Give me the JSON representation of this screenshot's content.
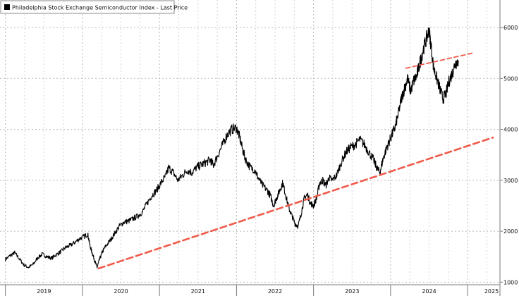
{
  "chart_data": {
    "type": "line",
    "title": "",
    "xlabel": "",
    "ylabel": "",
    "x_ticks": [
      "2019",
      "2020",
      "2021",
      "2022",
      "2023",
      "2024",
      "2025"
    ],
    "y_ticks": [
      1000,
      2000,
      3000,
      4000,
      5000,
      6000
    ],
    "xlim": [
      2018.93,
      2025.42
    ],
    "ylim": [
      950,
      6540
    ],
    "legend": {
      "position": "top-left",
      "label": "Philadelphia Stock Exchange Semiconductor Index - Last Price"
    },
    "series": [
      {
        "name": "Philadelphia Stock Exchange Semiconductor Index - Last Price",
        "style": "solid",
        "color": "#000000",
        "points": [
          [
            2019.0,
            1450
          ],
          [
            2019.06,
            1520
          ],
          [
            2019.12,
            1580
          ],
          [
            2019.18,
            1460
          ],
          [
            2019.24,
            1340
          ],
          [
            2019.3,
            1290
          ],
          [
            2019.36,
            1350
          ],
          [
            2019.42,
            1480
          ],
          [
            2019.48,
            1550
          ],
          [
            2019.54,
            1500
          ],
          [
            2019.6,
            1470
          ],
          [
            2019.66,
            1540
          ],
          [
            2019.72,
            1600
          ],
          [
            2019.78,
            1680
          ],
          [
            2019.84,
            1720
          ],
          [
            2019.9,
            1780
          ],
          [
            2019.96,
            1850
          ],
          [
            2020.02,
            1900
          ],
          [
            2020.07,
            1940
          ],
          [
            2020.1,
            1700
          ],
          [
            2020.13,
            1560
          ],
          [
            2020.16,
            1420
          ],
          [
            2020.19,
            1290
          ],
          [
            2020.22,
            1440
          ],
          [
            2020.26,
            1600
          ],
          [
            2020.3,
            1700
          ],
          [
            2020.36,
            1820
          ],
          [
            2020.42,
            1960
          ],
          [
            2020.48,
            2100
          ],
          [
            2020.54,
            2180
          ],
          [
            2020.6,
            2200
          ],
          [
            2020.66,
            2250
          ],
          [
            2020.72,
            2300
          ],
          [
            2020.78,
            2380
          ],
          [
            2020.84,
            2550
          ],
          [
            2020.9,
            2700
          ],
          [
            2020.96,
            2800
          ],
          [
            2021.02,
            2950
          ],
          [
            2021.08,
            3080
          ],
          [
            2021.12,
            3250
          ],
          [
            2021.18,
            3150
          ],
          [
            2021.24,
            3000
          ],
          [
            2021.3,
            3100
          ],
          [
            2021.36,
            3200
          ],
          [
            2021.42,
            3150
          ],
          [
            2021.48,
            3250
          ],
          [
            2021.54,
            3300
          ],
          [
            2021.6,
            3350
          ],
          [
            2021.66,
            3400
          ],
          [
            2021.7,
            3300
          ],
          [
            2021.76,
            3500
          ],
          [
            2021.82,
            3700
          ],
          [
            2021.88,
            3900
          ],
          [
            2021.94,
            4000
          ],
          [
            2022.0,
            4030
          ],
          [
            2022.04,
            3850
          ],
          [
            2022.08,
            3600
          ],
          [
            2022.12,
            3400
          ],
          [
            2022.18,
            3250
          ],
          [
            2022.24,
            3200
          ],
          [
            2022.28,
            3050
          ],
          [
            2022.34,
            2900
          ],
          [
            2022.4,
            2800
          ],
          [
            2022.44,
            2700
          ],
          [
            2022.48,
            2500
          ],
          [
            2022.52,
            2650
          ],
          [
            2022.56,
            2800
          ],
          [
            2022.6,
            2950
          ],
          [
            2022.64,
            2700
          ],
          [
            2022.68,
            2450
          ],
          [
            2022.72,
            2300
          ],
          [
            2022.76,
            2150
          ],
          [
            2022.8,
            2100
          ],
          [
            2022.84,
            2350
          ],
          [
            2022.88,
            2650
          ],
          [
            2022.92,
            2720
          ],
          [
            2022.96,
            2550
          ],
          [
            2023.0,
            2500
          ],
          [
            2023.04,
            2650
          ],
          [
            2023.08,
            2950
          ],
          [
            2023.12,
            3000
          ],
          [
            2023.16,
            2900
          ],
          [
            2023.2,
            3050
          ],
          [
            2023.24,
            3000
          ],
          [
            2023.3,
            3100
          ],
          [
            2023.36,
            3350
          ],
          [
            2023.42,
            3550
          ],
          [
            2023.48,
            3650
          ],
          [
            2023.54,
            3700
          ],
          [
            2023.6,
            3800
          ],
          [
            2023.66,
            3700
          ],
          [
            2023.72,
            3550
          ],
          [
            2023.78,
            3400
          ],
          [
            2023.82,
            3250
          ],
          [
            2023.86,
            3150
          ],
          [
            2023.9,
            3400
          ],
          [
            2023.94,
            3600
          ],
          [
            2023.98,
            3750
          ],
          [
            2024.02,
            3900
          ],
          [
            2024.06,
            4050
          ],
          [
            2024.1,
            4300
          ],
          [
            2024.14,
            4600
          ],
          [
            2024.18,
            4800
          ],
          [
            2024.22,
            5000
          ],
          [
            2024.26,
            4750
          ],
          [
            2024.3,
            4950
          ],
          [
            2024.34,
            5050
          ],
          [
            2024.38,
            5300
          ],
          [
            2024.42,
            5550
          ],
          [
            2024.46,
            5750
          ],
          [
            2024.5,
            5950
          ],
          [
            2024.52,
            5700
          ],
          [
            2024.56,
            5200
          ],
          [
            2024.6,
            5000
          ],
          [
            2024.64,
            4800
          ],
          [
            2024.68,
            4600
          ],
          [
            2024.72,
            4700
          ],
          [
            2024.76,
            4950
          ],
          [
            2024.8,
            5100
          ],
          [
            2024.84,
            5300
          ],
          [
            2024.88,
            5350
          ]
        ]
      },
      {
        "name": "Long-term support trendline",
        "style": "dashed",
        "color": "#f05a4a",
        "points": [
          [
            2020.21,
            1270
          ],
          [
            2025.33,
            3840
          ]
        ]
      },
      {
        "name": "Resistance trendline",
        "style": "dashed",
        "color": "#f05a4a",
        "points": [
          [
            2024.2,
            5200
          ],
          [
            2025.07,
            5500
          ]
        ]
      }
    ]
  }
}
